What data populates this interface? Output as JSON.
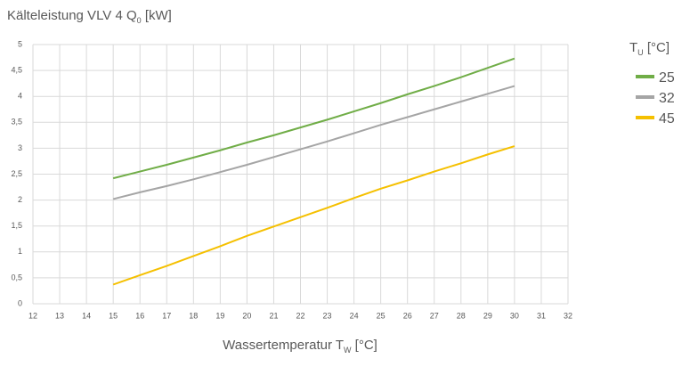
{
  "chart_data": {
    "type": "line",
    "title": [
      "Kälteleistung VLV 4 Q",
      "0",
      " [kW]"
    ],
    "x_label": [
      "Wassertemperatur T",
      "W",
      " [°C]"
    ],
    "legend_title": [
      "T",
      "U",
      " [°C]"
    ],
    "legend_position": "right",
    "grid": true,
    "x": [
      15,
      16,
      17,
      18,
      19,
      20,
      21,
      22,
      23,
      24,
      25,
      26,
      27,
      28,
      29,
      30
    ],
    "series": [
      {
        "name": "25",
        "color": "#70ad47",
        "values": [
          2.42,
          2.55,
          2.68,
          2.82,
          2.96,
          3.11,
          3.25,
          3.4,
          3.55,
          3.71,
          3.87,
          4.04,
          4.2,
          4.37,
          4.55,
          4.73
        ]
      },
      {
        "name": "32",
        "color": "#a5a5a5",
        "values": [
          2.02,
          2.15,
          2.27,
          2.4,
          2.54,
          2.68,
          2.83,
          2.98,
          3.13,
          3.29,
          3.45,
          3.6,
          3.75,
          3.9,
          4.05,
          4.2
        ]
      },
      {
        "name": "45",
        "color": "#f5c000",
        "values": [
          0.37,
          0.55,
          0.73,
          0.92,
          1.11,
          1.31,
          1.49,
          1.67,
          1.85,
          2.04,
          2.22,
          2.38,
          2.55,
          2.71,
          2.88,
          3.04
        ]
      }
    ],
    "xlim": [
      12,
      32
    ],
    "xticks": [
      12,
      13,
      14,
      15,
      16,
      17,
      18,
      19,
      20,
      21,
      22,
      23,
      24,
      25,
      26,
      27,
      28,
      29,
      30,
      31,
      32
    ],
    "ylim": [
      0,
      5
    ],
    "yticks": [
      0,
      {
        "value": 0.5,
        "label": "0,5"
      },
      1,
      {
        "value": 1.5,
        "label": "1,5"
      },
      2,
      {
        "value": 2.5,
        "label": "2,5"
      },
      3,
      {
        "value": 3.5,
        "label": "3,5"
      },
      4,
      {
        "value": 4.5,
        "label": "4,5"
      },
      5
    ]
  }
}
